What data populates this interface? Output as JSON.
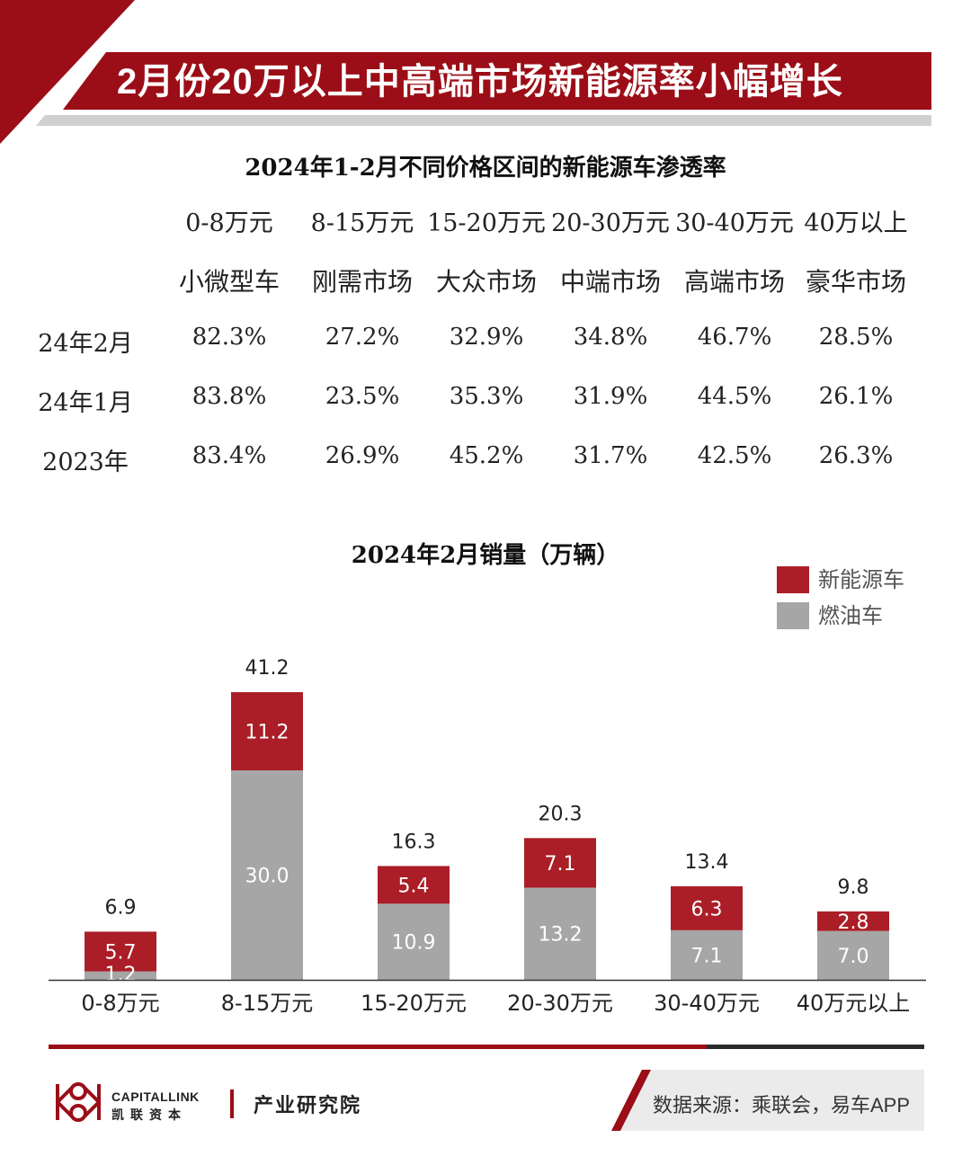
{
  "header": {
    "title": "2月份20万以上中高端市场新能源率小幅增长",
    "accent_color": "#9b0e17"
  },
  "penetration_table": {
    "title": "2024年1-2月不同价格区间的新能源车渗透率",
    "price_ranges": [
      "0-8万元",
      "8-15万元",
      "15-20万元",
      "20-30万元",
      "30-40万元",
      "40万以上"
    ],
    "markets": [
      "小微型车",
      "刚需市场",
      "大众市场",
      "中端市场",
      "高端市场",
      "豪华市场"
    ],
    "rows": [
      {
        "label": "24年2月",
        "values": [
          "82.3%",
          "27.2%",
          "32.9%",
          "34.8%",
          "46.7%",
          "28.5%"
        ]
      },
      {
        "label": "24年1月",
        "values": [
          "83.8%",
          "23.5%",
          "35.3%",
          "31.9%",
          "44.5%",
          "26.1%"
        ]
      },
      {
        "label": "2023年",
        "values": [
          "83.4%",
          "26.9%",
          "45.2%",
          "31.7%",
          "42.5%",
          "26.3%"
        ]
      }
    ]
  },
  "chart_data": {
    "type": "bar",
    "stacked": true,
    "title": "2024年2月销量（万辆）",
    "categories": [
      "0-8万元",
      "8-15万元",
      "15-20万元",
      "20-30万元",
      "30-40万元",
      "40万元以上"
    ],
    "series": [
      {
        "name": "燃油车",
        "color": "#a6a6a6",
        "values": [
          1.2,
          30.0,
          10.9,
          13.2,
          7.1,
          7.0
        ],
        "labels": [
          "1.2",
          "30.0",
          "10.9",
          "13.2",
          "7.1",
          "7.0"
        ]
      },
      {
        "name": "新能源车",
        "color": "#ab1e27",
        "values": [
          5.7,
          11.2,
          5.4,
          7.1,
          6.3,
          2.8
        ],
        "labels": [
          "5.7",
          "11.2",
          "5.4",
          "7.1",
          "6.3",
          "2.8"
        ]
      }
    ],
    "totals": [
      6.9,
      41.2,
      16.3,
      20.3,
      13.4,
      9.8
    ],
    "total_labels": [
      "6.9",
      "41.2",
      "16.3",
      "20.3",
      "13.4",
      "9.8"
    ],
    "legend": [
      {
        "name": "新能源车",
        "color": "#ab1e27"
      },
      {
        "name": "燃油车",
        "color": "#a6a6a6"
      }
    ],
    "ylim": [
      0,
      41.2
    ],
    "xlabel": "",
    "ylabel": "",
    "grid": false
  },
  "footer": {
    "brand_en": "CAPITALLINK",
    "brand_cn": "凯联资本",
    "institute": "产业研究院",
    "source": "数据来源：乘联会，易车APP"
  }
}
